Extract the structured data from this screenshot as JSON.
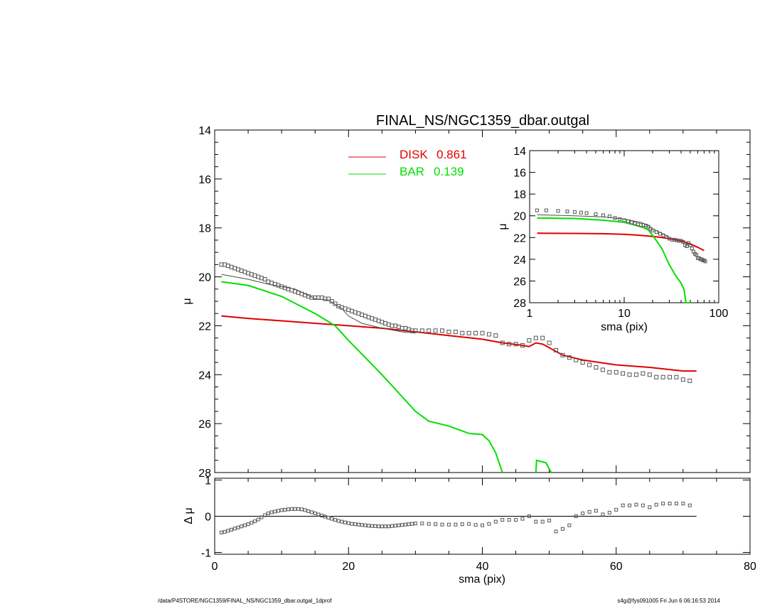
{
  "chart_data": [
    {
      "panel": "main",
      "type": "line",
      "title": "FINAL_NS/NGC1359_dbar.outgal",
      "xlabel": "",
      "ylabel": "μ",
      "xlim": [
        0,
        80
      ],
      "ylim": [
        28,
        14
      ],
      "y_inverted": true,
      "yticks": [
        14,
        16,
        18,
        20,
        22,
        24,
        26,
        28
      ],
      "legend": [
        {
          "label": "DISK",
          "value": "0.861",
          "color": "#e00000"
        },
        {
          "label": "BAR",
          "value": "0.139",
          "color": "#00e000"
        }
      ],
      "legend_position": "top-center",
      "series": [
        {
          "name": "DISK",
          "color": "#e00000",
          "style": "line",
          "x": [
            1,
            5,
            10,
            15,
            20,
            25,
            30,
            35,
            40,
            43,
            46,
            47,
            48,
            49,
            50,
            52,
            55,
            60,
            65,
            70,
            72
          ],
          "y": [
            21.6,
            21.7,
            21.8,
            21.9,
            22.0,
            22.1,
            22.25,
            22.4,
            22.55,
            22.7,
            22.8,
            22.85,
            22.7,
            22.75,
            22.9,
            23.2,
            23.4,
            23.6,
            23.7,
            23.85,
            23.85
          ]
        },
        {
          "name": "BAR",
          "color": "#00e000",
          "style": "line",
          "x": [
            1,
            5,
            10,
            15,
            18,
            20,
            25,
            30,
            32,
            35,
            38,
            40,
            41,
            42,
            43
          ],
          "y": [
            20.2,
            20.35,
            20.8,
            21.5,
            22.0,
            22.6,
            24.0,
            25.5,
            25.9,
            26.1,
            26.4,
            26.45,
            26.7,
            27.2,
            28.2
          ]
        },
        {
          "name": "",
          "color": "#00e000",
          "style": "line",
          "x": [
            48,
            48.1,
            49.5,
            50.3
          ],
          "y": [
            28.2,
            27.5,
            27.6,
            28.2
          ]
        },
        {
          "name": "",
          "color": "#4a4a4a",
          "style": "line",
          "x": [
            1,
            5,
            8,
            10,
            12,
            15,
            17,
            19,
            20,
            22,
            25,
            28,
            30
          ],
          "y": [
            19.9,
            20.1,
            20.3,
            20.4,
            20.5,
            20.9,
            20.95,
            21.3,
            21.6,
            21.9,
            22.1,
            22.25,
            22.3
          ]
        },
        {
          "name": "",
          "color": "#555555",
          "style": "squares",
          "x": [
            1,
            1.5,
            2,
            2.5,
            3,
            3.5,
            4,
            4.5,
            5,
            5.5,
            6,
            6.5,
            7,
            7.5,
            8,
            8.5,
            9,
            9.5,
            10,
            10.5,
            11,
            11.5,
            12,
            12.5,
            13,
            13.5,
            14,
            14.5,
            15,
            15.5,
            16,
            16.5,
            17,
            17.5,
            18,
            18.5,
            19,
            19.5,
            20,
            20.5,
            21,
            21.5,
            22,
            22.5,
            23,
            23.5,
            24,
            24.5,
            25,
            25.5,
            26,
            26.5,
            27,
            27.5,
            28,
            28.5,
            29,
            29.5,
            30,
            31,
            32,
            33,
            34,
            35,
            36,
            37,
            38,
            39,
            40,
            41,
            42,
            43,
            44,
            45,
            46,
            47,
            48,
            49,
            50,
            51,
            52,
            53,
            54,
            55,
            56,
            57,
            58,
            59,
            60,
            61,
            62,
            63,
            64,
            65,
            66,
            67,
            68,
            69,
            70,
            71
          ],
          "y": [
            19.5,
            19.5,
            19.55,
            19.6,
            19.65,
            19.7,
            19.75,
            19.8,
            19.85,
            19.9,
            19.95,
            20.0,
            20.05,
            20.1,
            20.2,
            20.25,
            20.3,
            20.35,
            20.4,
            20.45,
            20.5,
            20.55,
            20.6,
            20.65,
            20.7,
            20.75,
            20.8,
            20.85,
            20.85,
            20.85,
            20.85,
            20.9,
            20.9,
            21.0,
            21.1,
            21.2,
            21.25,
            21.3,
            21.35,
            21.4,
            21.45,
            21.5,
            21.55,
            21.6,
            21.65,
            21.7,
            21.75,
            21.8,
            21.85,
            21.9,
            21.95,
            22.0,
            22.0,
            22.05,
            22.1,
            22.1,
            22.15,
            22.2,
            22.2,
            22.2,
            22.2,
            22.2,
            22.2,
            22.25,
            22.25,
            22.3,
            22.3,
            22.3,
            22.3,
            22.35,
            22.4,
            22.7,
            22.75,
            22.75,
            22.8,
            22.6,
            22.5,
            22.5,
            22.7,
            23.0,
            23.2,
            23.3,
            23.4,
            23.5,
            23.6,
            23.7,
            23.8,
            23.9,
            23.9,
            23.95,
            24.0,
            24.0,
            23.95,
            24.0,
            24.1,
            24.1,
            24.1,
            24.1,
            24.2,
            24.25
          ]
        }
      ]
    },
    {
      "panel": "residual",
      "type": "scatter",
      "xlabel": "sma (pix)",
      "ylabel": "Δ μ",
      "xlim": [
        0,
        80
      ],
      "ylim": [
        -1.05,
        1.05
      ],
      "yticks": [
        -1,
        0,
        1
      ],
      "xticks": [
        0,
        20,
        40,
        60,
        80
      ],
      "zero_line": true,
      "series": [
        {
          "name": "",
          "color": "#555555",
          "style": "squares",
          "x": [
            1,
            1.5,
            2,
            2.5,
            3,
            3.5,
            4,
            4.5,
            5,
            5.5,
            6,
            6.5,
            7,
            7.5,
            8,
            8.5,
            9,
            9.5,
            10,
            10.5,
            11,
            11.5,
            12,
            12.5,
            13,
            13.5,
            14,
            14.5,
            15,
            15.5,
            16,
            16.5,
            17,
            17.5,
            18,
            18.5,
            19,
            19.5,
            20,
            20.5,
            21,
            21.5,
            22,
            22.5,
            23,
            23.5,
            24,
            24.5,
            25,
            25.5,
            26,
            26.5,
            27,
            27.5,
            28,
            28.5,
            29,
            29.5,
            30,
            31,
            32,
            33,
            34,
            35,
            36,
            37,
            38,
            39,
            40,
            41,
            42,
            43,
            44,
            45,
            46,
            47,
            48,
            49,
            50,
            51,
            52,
            53,
            54,
            55,
            56,
            57,
            58,
            59,
            60,
            61,
            62,
            63,
            64,
            65,
            66,
            67,
            68,
            69,
            70,
            71
          ],
          "y": [
            -0.45,
            -0.43,
            -0.4,
            -0.37,
            -0.34,
            -0.31,
            -0.28,
            -0.25,
            -0.22,
            -0.18,
            -0.14,
            -0.09,
            -0.03,
            0.03,
            0.08,
            0.11,
            0.13,
            0.15,
            0.17,
            0.18,
            0.19,
            0.2,
            0.2,
            0.2,
            0.19,
            0.17,
            0.14,
            0.11,
            0.08,
            0.05,
            0.02,
            -0.01,
            -0.04,
            -0.07,
            -0.1,
            -0.13,
            -0.15,
            -0.17,
            -0.19,
            -0.21,
            -0.22,
            -0.23,
            -0.24,
            -0.25,
            -0.26,
            -0.27,
            -0.27,
            -0.28,
            -0.28,
            -0.28,
            -0.28,
            -0.27,
            -0.26,
            -0.25,
            -0.24,
            -0.23,
            -0.22,
            -0.21,
            -0.2,
            -0.2,
            -0.21,
            -0.22,
            -0.23,
            -0.23,
            -0.23,
            -0.22,
            -0.21,
            -0.24,
            -0.25,
            -0.21,
            -0.15,
            -0.1,
            -0.1,
            -0.1,
            -0.07,
            0.0,
            -0.15,
            -0.15,
            -0.12,
            -0.42,
            -0.35,
            -0.25,
            0.0,
            0.08,
            0.12,
            0.15,
            0.05,
            0.1,
            0.18,
            0.3,
            0.3,
            0.32,
            0.3,
            0.25,
            0.32,
            0.35,
            0.35,
            0.35,
            0.35,
            0.3
          ]
        }
      ]
    },
    {
      "panel": "inset",
      "type": "line",
      "xlabel": "sma (pix)",
      "ylabel": "μ",
      "x_scale": "log",
      "xlim": [
        1,
        100
      ],
      "ylim": [
        28,
        14
      ],
      "y_inverted": true,
      "yticks": [
        14,
        16,
        18,
        20,
        22,
        24,
        26,
        28
      ],
      "xticks": [
        1,
        10,
        100
      ],
      "series": [
        {
          "name": "DISK",
          "color": "#e00000",
          "style": "line",
          "x": [
            1.2,
            3,
            6,
            10,
            15,
            20,
            25,
            30,
            40,
            50,
            60,
            70
          ],
          "y": [
            21.6,
            21.62,
            21.65,
            21.7,
            21.8,
            21.9,
            22.0,
            22.1,
            22.3,
            22.6,
            22.9,
            23.2
          ]
        },
        {
          "name": "BAR",
          "color": "#00e000",
          "style": "line",
          "x": [
            1.2,
            3,
            6,
            10,
            15,
            18,
            20,
            25,
            30,
            35,
            40,
            43,
            45,
            50
          ],
          "y": [
            20.2,
            20.25,
            20.4,
            20.6,
            21.0,
            21.3,
            21.8,
            23.0,
            24.5,
            25.5,
            26.2,
            26.8,
            28.2,
            28.2
          ]
        },
        {
          "name": "",
          "color": "#4a4a4a",
          "style": "line",
          "x": [
            1.2,
            3,
            6,
            10,
            15,
            18,
            20,
            25,
            30
          ],
          "y": [
            19.9,
            20.0,
            20.1,
            20.3,
            20.6,
            20.9,
            21.2,
            21.6,
            22.0
          ]
        },
        {
          "name": "",
          "color": "#555555",
          "style": "squares",
          "x": [
            1.2,
            1.5,
            2,
            2.5,
            3,
            3.5,
            4,
            5,
            6,
            7,
            8,
            9,
            10,
            11,
            12,
            13,
            14,
            15,
            16,
            17,
            18,
            19,
            20,
            22,
            24,
            26,
            28,
            30,
            32,
            34,
            36,
            38,
            40,
            42,
            44,
            46,
            48,
            50,
            52,
            54,
            56,
            58,
            60,
            62,
            64,
            66,
            68,
            70,
            72
          ],
          "y": [
            19.5,
            19.5,
            19.55,
            19.6,
            19.65,
            19.7,
            19.75,
            19.85,
            19.95,
            20.05,
            20.2,
            20.3,
            20.4,
            20.5,
            20.6,
            20.7,
            20.8,
            20.85,
            20.85,
            20.9,
            21.0,
            21.2,
            21.35,
            21.5,
            21.65,
            21.8,
            21.95,
            22.1,
            22.2,
            22.2,
            22.25,
            22.3,
            22.3,
            22.4,
            22.7,
            22.8,
            22.5,
            22.7,
            23.0,
            23.3,
            23.5,
            23.6,
            23.9,
            23.9,
            24.0,
            24.0,
            24.1,
            24.1,
            24.2
          ]
        }
      ]
    }
  ],
  "footer": {
    "left": "/data/P4STORE/NGC1359/FINAL_NS/NGC1359_dbar.outgal_1dprof",
    "right": "s4g@fys091005  Fri Jun  6 06:16:53 2014"
  }
}
